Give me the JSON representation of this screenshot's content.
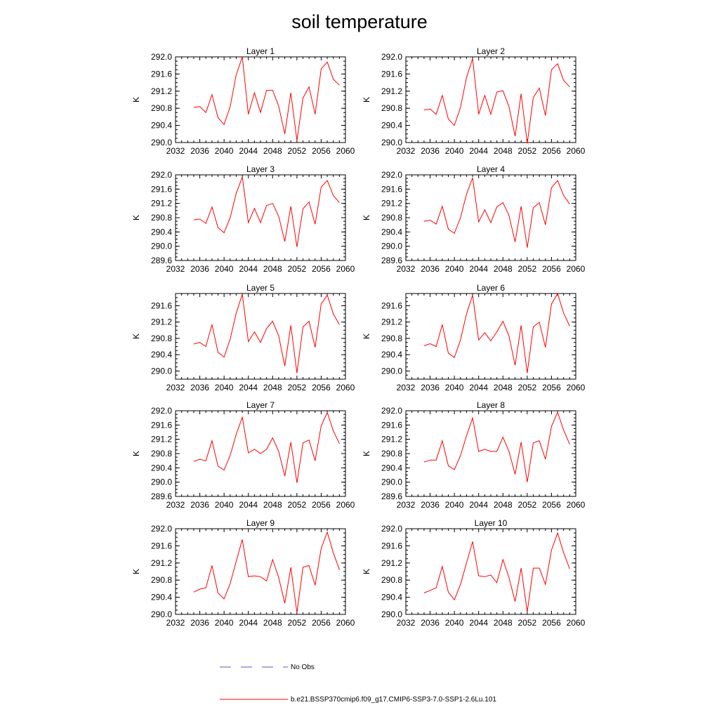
{
  "title": "soil temperature",
  "chart_data": [
    {
      "type": "line",
      "title": "Layer 1",
      "ylabel": "K",
      "ylim": [
        290.0,
        292.0
      ],
      "yticks": [
        "290.0",
        "290.4",
        "290.8",
        "291.2",
        "291.6",
        "292.0"
      ],
      "xlim": [
        2032,
        2060
      ],
      "xticks": [
        "2032",
        "2036",
        "2040",
        "2044",
        "2048",
        "2052",
        "2056",
        "2060"
      ],
      "x": [
        2035,
        2036,
        2037,
        2038,
        2039,
        2040,
        2041,
        2042,
        2043,
        2044,
        2045,
        2046,
        2047,
        2048,
        2049,
        2050,
        2051,
        2052,
        2053,
        2054,
        2055,
        2056,
        2057,
        2058,
        2059
      ],
      "series": [
        {
          "name": "b.e21.BSSP370cmip6.f09_g17.CMIP6-SSP3-7.0-SSP1-2.6Lu.101",
          "values": [
            290.82,
            290.84,
            290.7,
            291.12,
            290.58,
            290.42,
            290.84,
            291.58,
            292.0,
            290.66,
            291.16,
            290.7,
            291.22,
            291.22,
            290.85,
            290.2,
            291.16,
            290.05,
            291.04,
            291.3,
            290.66,
            291.72,
            291.88,
            291.48,
            291.34
          ]
        }
      ]
    },
    {
      "type": "line",
      "title": "Layer 2",
      "ylabel": "K",
      "ylim": [
        290.0,
        292.0
      ],
      "yticks": [
        "290.0",
        "290.4",
        "290.8",
        "291.2",
        "291.6",
        "292.0"
      ],
      "xlim": [
        2032,
        2060
      ],
      "xticks": [
        "2032",
        "2036",
        "2040",
        "2044",
        "2048",
        "2052",
        "2056",
        "2060"
      ],
      "x": [
        2035,
        2036,
        2037,
        2038,
        2039,
        2040,
        2041,
        2042,
        2043,
        2044,
        2045,
        2046,
        2047,
        2048,
        2049,
        2050,
        2051,
        2052,
        2053,
        2054,
        2055,
        2056,
        2057,
        2058,
        2059
      ],
      "series": [
        {
          "name": "b.e21.BSSP370cmip6.f09_g17.CMIP6-SSP3-7.0-SSP1-2.6Lu.101",
          "values": [
            290.76,
            290.78,
            290.66,
            291.1,
            290.55,
            290.4,
            290.82,
            291.52,
            291.96,
            290.66,
            291.1,
            290.66,
            291.18,
            291.21,
            290.84,
            290.15,
            291.14,
            289.98,
            291.05,
            291.27,
            290.63,
            291.7,
            291.84,
            291.45,
            291.3
          ]
        }
      ]
    },
    {
      "type": "line",
      "title": "Layer 3",
      "ylabel": "K",
      "ylim": [
        289.6,
        292.0
      ],
      "yticks": [
        "289.6",
        "290.0",
        "290.4",
        "290.8",
        "291.2",
        "291.6",
        "292.0"
      ],
      "xlim": [
        2032,
        2060
      ],
      "xticks": [
        "2032",
        "2036",
        "2040",
        "2044",
        "2048",
        "2052",
        "2056",
        "2060"
      ],
      "x": [
        2035,
        2036,
        2037,
        2038,
        2039,
        2040,
        2041,
        2042,
        2043,
        2044,
        2045,
        2046,
        2047,
        2048,
        2049,
        2050,
        2051,
        2052,
        2053,
        2054,
        2055,
        2056,
        2057,
        2058,
        2059
      ],
      "series": [
        {
          "name": "b.e21.BSSP370cmip6.f09_g17.CMIP6-SSP3-7.0-SSP1-2.6Lu.101",
          "values": [
            290.74,
            290.76,
            290.64,
            291.1,
            290.52,
            290.38,
            290.8,
            291.48,
            291.94,
            290.66,
            291.06,
            290.66,
            291.14,
            291.2,
            290.84,
            290.13,
            291.12,
            289.98,
            291.05,
            291.24,
            290.62,
            291.66,
            291.84,
            291.42,
            291.22
          ]
        }
      ]
    },
    {
      "type": "line",
      "title": "Layer 4",
      "ylabel": "K",
      "ylim": [
        289.6,
        292.0
      ],
      "yticks": [
        "289.6",
        "290.0",
        "290.4",
        "290.8",
        "291.2",
        "291.6",
        "292.0"
      ],
      "xlim": [
        2032,
        2060
      ],
      "xticks": [
        "2032",
        "2036",
        "2040",
        "2044",
        "2048",
        "2052",
        "2056",
        "2060"
      ],
      "x": [
        2035,
        2036,
        2037,
        2038,
        2039,
        2040,
        2041,
        2042,
        2043,
        2044,
        2045,
        2046,
        2047,
        2048,
        2049,
        2050,
        2051,
        2052,
        2053,
        2054,
        2055,
        2056,
        2057,
        2058,
        2059
      ],
      "series": [
        {
          "name": "b.e21.BSSP370cmip6.f09_g17.CMIP6-SSP3-7.0-SSP1-2.6Lu.101",
          "values": [
            290.7,
            290.73,
            290.62,
            291.12,
            290.48,
            290.36,
            290.8,
            291.46,
            291.92,
            290.68,
            291.02,
            290.66,
            291.1,
            291.22,
            290.86,
            290.12,
            291.12,
            289.96,
            291.08,
            291.22,
            290.6,
            291.64,
            291.84,
            291.42,
            291.18
          ]
        }
      ]
    },
    {
      "type": "line",
      "title": "Layer 5",
      "ylabel": "K",
      "ylim": [
        289.8,
        291.9
      ],
      "yticks": [
        "290.0",
        "290.4",
        "290.8",
        "291.2",
        "291.6"
      ],
      "xlim": [
        2032,
        2060
      ],
      "xticks": [
        "2032",
        "2036",
        "2040",
        "2044",
        "2048",
        "2052",
        "2056",
        "2060"
      ],
      "x": [
        2035,
        2036,
        2037,
        2038,
        2039,
        2040,
        2041,
        2042,
        2043,
        2044,
        2045,
        2046,
        2047,
        2048,
        2049,
        2050,
        2051,
        2052,
        2053,
        2054,
        2055,
        2056,
        2057,
        2058,
        2059
      ],
      "series": [
        {
          "name": "b.e21.BSSP370cmip6.f09_g17.CMIP6-SSP3-7.0-SSP1-2.6Lu.101",
          "values": [
            290.66,
            290.7,
            290.6,
            291.14,
            290.46,
            290.34,
            290.78,
            291.42,
            291.88,
            290.72,
            290.96,
            290.7,
            291.04,
            291.22,
            290.86,
            290.12,
            291.12,
            289.95,
            291.08,
            291.22,
            290.58,
            291.64,
            291.86,
            291.4,
            291.14
          ]
        }
      ]
    },
    {
      "type": "line",
      "title": "Layer 6",
      "ylabel": "K",
      "ylim": [
        289.8,
        291.9
      ],
      "yticks": [
        "290.0",
        "290.4",
        "290.8",
        "291.2",
        "291.6"
      ],
      "xlim": [
        2032,
        2060
      ],
      "xticks": [
        "2032",
        "2036",
        "2040",
        "2044",
        "2048",
        "2052",
        "2056",
        "2060"
      ],
      "x": [
        2035,
        2036,
        2037,
        2038,
        2039,
        2040,
        2041,
        2042,
        2043,
        2044,
        2045,
        2046,
        2047,
        2048,
        2049,
        2050,
        2051,
        2052,
        2053,
        2054,
        2055,
        2056,
        2057,
        2058,
        2059
      ],
      "series": [
        {
          "name": "b.e21.BSSP370cmip6.f09_g17.CMIP6-SSP3-7.0-SSP1-2.6Lu.101",
          "values": [
            290.62,
            290.67,
            290.6,
            291.14,
            290.44,
            290.33,
            290.76,
            291.4,
            291.86,
            290.76,
            290.94,
            290.74,
            290.96,
            291.22,
            290.86,
            290.14,
            291.12,
            289.95,
            291.08,
            291.2,
            290.58,
            291.64,
            291.9,
            291.42,
            291.1
          ]
        }
      ]
    },
    {
      "type": "line",
      "title": "Layer 7",
      "ylabel": "K",
      "ylim": [
        289.6,
        292.0
      ],
      "yticks": [
        "289.6",
        "290.0",
        "290.4",
        "290.8",
        "291.2",
        "291.6",
        "292.0"
      ],
      "xlim": [
        2032,
        2060
      ],
      "xticks": [
        "2032",
        "2036",
        "2040",
        "2044",
        "2048",
        "2052",
        "2056",
        "2060"
      ],
      "x": [
        2035,
        2036,
        2037,
        2038,
        2039,
        2040,
        2041,
        2042,
        2043,
        2044,
        2045,
        2046,
        2047,
        2048,
        2049,
        2050,
        2051,
        2052,
        2053,
        2054,
        2055,
        2056,
        2057,
        2058,
        2059
      ],
      "series": [
        {
          "name": "b.e21.BSSP370cmip6.f09_g17.CMIP6-SSP3-7.0-SSP1-2.6Lu.101",
          "values": [
            290.58,
            290.64,
            290.6,
            291.16,
            290.45,
            290.34,
            290.75,
            291.34,
            291.82,
            290.82,
            290.92,
            290.8,
            290.92,
            291.24,
            290.86,
            290.17,
            291.12,
            289.98,
            291.1,
            291.18,
            290.6,
            291.58,
            291.95,
            291.44,
            291.08
          ]
        }
      ]
    },
    {
      "type": "line",
      "title": "Layer 8",
      "ylabel": "K",
      "ylim": [
        289.6,
        292.0
      ],
      "yticks": [
        "289.6",
        "290.0",
        "290.4",
        "290.8",
        "291.2",
        "291.6",
        "292.0"
      ],
      "xlim": [
        2032,
        2060
      ],
      "xticks": [
        "2032",
        "2036",
        "2040",
        "2044",
        "2048",
        "2052",
        "2056",
        "2060"
      ],
      "x": [
        2035,
        2036,
        2037,
        2038,
        2039,
        2040,
        2041,
        2042,
        2043,
        2044,
        2045,
        2046,
        2047,
        2048,
        2049,
        2050,
        2051,
        2052,
        2053,
        2054,
        2055,
        2056,
        2057,
        2058,
        2059
      ],
      "series": [
        {
          "name": "b.e21.BSSP370cmip6.f09_g17.CMIP6-SSP3-7.0-SSP1-2.6Lu.101",
          "values": [
            290.56,
            290.62,
            290.62,
            291.16,
            290.46,
            290.35,
            290.74,
            291.3,
            291.8,
            290.86,
            290.92,
            290.86,
            290.86,
            291.26,
            290.86,
            290.22,
            291.12,
            290.0,
            291.1,
            291.16,
            290.64,
            291.56,
            291.96,
            291.46,
            291.06
          ]
        }
      ]
    },
    {
      "type": "line",
      "title": "Layer 9",
      "ylabel": "K",
      "ylim": [
        290.0,
        292.0
      ],
      "yticks": [
        "290.0",
        "290.4",
        "290.8",
        "291.2",
        "291.6",
        "292.0"
      ],
      "xlim": [
        2032,
        2060
      ],
      "xticks": [
        "2032",
        "2036",
        "2040",
        "2044",
        "2048",
        "2052",
        "2056",
        "2060"
      ],
      "x": [
        2035,
        2036,
        2037,
        2038,
        2039,
        2040,
        2041,
        2042,
        2043,
        2044,
        2045,
        2046,
        2047,
        2048,
        2049,
        2050,
        2051,
        2052,
        2053,
        2054,
        2055,
        2056,
        2057,
        2058,
        2059
      ],
      "series": [
        {
          "name": "b.e21.BSSP370cmip6.f09_g17.CMIP6-SSP3-7.0-SSP1-2.6Lu.101",
          "values": [
            290.52,
            290.59,
            290.62,
            291.14,
            290.5,
            290.36,
            290.72,
            291.24,
            291.75,
            290.88,
            290.9,
            290.88,
            290.78,
            291.28,
            290.86,
            290.26,
            291.1,
            290.04,
            291.1,
            291.14,
            290.68,
            291.54,
            291.92,
            291.44,
            291.04
          ]
        }
      ]
    },
    {
      "type": "line",
      "title": "Layer 10",
      "ylabel": "K",
      "ylim": [
        290.0,
        292.0
      ],
      "yticks": [
        "290.0",
        "290.4",
        "290.8",
        "291.2",
        "291.6",
        "292.0"
      ],
      "xlim": [
        2032,
        2060
      ],
      "xticks": [
        "2032",
        "2036",
        "2040",
        "2044",
        "2048",
        "2052",
        "2056",
        "2060"
      ],
      "x": [
        2035,
        2036,
        2037,
        2038,
        2039,
        2040,
        2041,
        2042,
        2043,
        2044,
        2045,
        2046,
        2047,
        2048,
        2049,
        2050,
        2051,
        2052,
        2053,
        2054,
        2055,
        2056,
        2057,
        2058,
        2059
      ],
      "series": [
        {
          "name": "b.e21.BSSP370cmip6.f09_g17.CMIP6-SSP3-7.0-SSP1-2.6Lu.101",
          "values": [
            290.5,
            290.56,
            290.62,
            291.12,
            290.52,
            290.34,
            290.7,
            291.2,
            291.7,
            290.9,
            290.88,
            290.92,
            290.74,
            291.28,
            290.86,
            290.3,
            291.08,
            290.06,
            291.08,
            291.08,
            290.7,
            291.5,
            291.9,
            291.44,
            291.06
          ]
        }
      ]
    }
  ],
  "legend": {
    "entries": [
      {
        "label": "No Obs",
        "color": "#5a5ac8",
        "style": "dashed"
      },
      {
        "label": "b.e21.BSSP370cmip6.f09_g17.CMIP6-SSP3-7.0-SSP1-2.6Lu.101",
        "color": "#ff0000",
        "style": "solid"
      }
    ]
  },
  "colors": {
    "series": "#ff0000",
    "axes": "#000000"
  }
}
